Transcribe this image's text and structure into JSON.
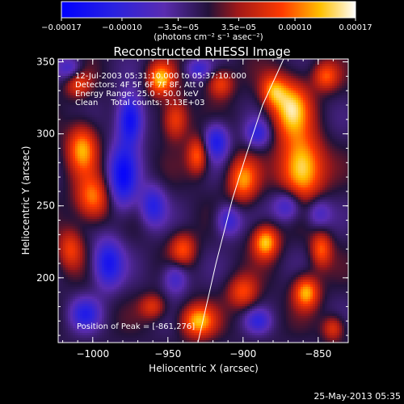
{
  "chart_data": {
    "type": "heatmap",
    "title": "Reconstructed RHESSI Image",
    "xlabel": "Heliocentric X (arcsec)",
    "ylabel": "Heliocentric Y (arcsec)",
    "xlim": [
      -1023,
      -830
    ],
    "ylim": [
      155,
      352
    ],
    "x_ticks": [
      -1000,
      -950,
      -900,
      -850
    ],
    "x_tick_labels": [
      "−1000",
      "−950",
      "−900",
      "−850"
    ],
    "y_ticks": [
      200,
      250,
      300,
      350
    ],
    "y_tick_labels": [
      "200",
      "250",
      "300",
      "350"
    ],
    "colorbar": {
      "range": [
        -0.00017,
        0.00017
      ],
      "tick_values": [
        -0.00017,
        -0.0001,
        -3.5e-05,
        3.5e-05,
        0.0001,
        0.00017
      ],
      "tick_labels": [
        "−0.00017",
        "−0.00010",
        "−3.5e−05",
        "3.5e−05",
        "0.00010",
        "0.00017"
      ],
      "units": "(photons cm⁻² s⁻¹ asec⁻²)"
    },
    "annotations": [
      "12-Jul-2003 05:31:10.000 to 05:37:10.000",
      "Detectors: 4F 5F 6F 7F 8F, Att 0",
      "Energy Range: 25.0 - 50.0 keV",
      "Clean     Total counts: 3.13E+03"
    ],
    "peak_label": "Position of Peak = [-861,276]",
    "peak": [
      -861,
      276
    ],
    "limb_curve": [
      [
        -930,
        155
      ],
      [
        -918,
        210
      ],
      [
        -907,
        255
      ],
      [
        -898,
        285
      ],
      [
        -887,
        320
      ],
      [
        -876,
        345
      ],
      [
        -873,
        352
      ]
    ],
    "blobs": [
      {
        "x": -861,
        "y": 276,
        "v": 1.0,
        "sx": 10,
        "sy": 16
      },
      {
        "x": -868,
        "y": 318,
        "v": 0.85,
        "sx": 9,
        "sy": 14
      },
      {
        "x": -900,
        "y": 268,
        "v": 0.7,
        "sx": 7,
        "sy": 11
      },
      {
        "x": -1007,
        "y": 290,
        "v": 0.75,
        "sx": 7,
        "sy": 12
      },
      {
        "x": -1000,
        "y": 255,
        "v": 0.7,
        "sx": 8,
        "sy": 11
      },
      {
        "x": -955,
        "y": 338,
        "v": 0.8,
        "sx": 6,
        "sy": 8
      },
      {
        "x": -945,
        "y": 310,
        "v": 0.6,
        "sx": 6,
        "sy": 10
      },
      {
        "x": -930,
        "y": 285,
        "v": 0.65,
        "sx": 5,
        "sy": 9
      },
      {
        "x": -885,
        "y": 225,
        "v": 0.85,
        "sx": 6,
        "sy": 8
      },
      {
        "x": -858,
        "y": 190,
        "v": 0.8,
        "sx": 6,
        "sy": 8
      },
      {
        "x": -848,
        "y": 220,
        "v": 0.6,
        "sx": 5,
        "sy": 9
      },
      {
        "x": -930,
        "y": 170,
        "v": 0.8,
        "sx": 8,
        "sy": 8
      },
      {
        "x": -900,
        "y": 190,
        "v": 0.55,
        "sx": 7,
        "sy": 8
      },
      {
        "x": -940,
        "y": 220,
        "v": 0.55,
        "sx": 6,
        "sy": 8
      },
      {
        "x": -1015,
        "y": 220,
        "v": 0.5,
        "sx": 6,
        "sy": 10
      },
      {
        "x": -960,
        "y": 180,
        "v": 0.45,
        "sx": 6,
        "sy": 6
      },
      {
        "x": -880,
        "y": 330,
        "v": 0.6,
        "sx": 6,
        "sy": 8
      },
      {
        "x": -845,
        "y": 340,
        "v": 0.55,
        "sx": 6,
        "sy": 7
      },
      {
        "x": -840,
        "y": 165,
        "v": 0.5,
        "sx": 5,
        "sy": 6
      },
      {
        "x": -1010,
        "y": 335,
        "v": 0.5,
        "sx": 6,
        "sy": 7
      },
      {
        "x": -915,
        "y": 335,
        "v": 0.55,
        "sx": 6,
        "sy": 7
      },
      {
        "x": -980,
        "y": 270,
        "v": -0.8,
        "sx": 7,
        "sy": 16
      },
      {
        "x": -975,
        "y": 310,
        "v": -0.9,
        "sx": 6,
        "sy": 12
      },
      {
        "x": -990,
        "y": 210,
        "v": -0.75,
        "sx": 7,
        "sy": 12
      },
      {
        "x": -960,
        "y": 250,
        "v": -0.6,
        "sx": 6,
        "sy": 10
      },
      {
        "x": -918,
        "y": 295,
        "v": -0.7,
        "sx": 6,
        "sy": 9
      },
      {
        "x": -910,
        "y": 240,
        "v": -0.55,
        "sx": 6,
        "sy": 8
      },
      {
        "x": -870,
        "y": 250,
        "v": -0.6,
        "sx": 7,
        "sy": 8
      },
      {
        "x": -850,
        "y": 245,
        "v": -0.45,
        "sx": 6,
        "sy": 8
      },
      {
        "x": -1005,
        "y": 175,
        "v": -0.55,
        "sx": 7,
        "sy": 8
      },
      {
        "x": -945,
        "y": 200,
        "v": -0.5,
        "sx": 6,
        "sy": 8
      },
      {
        "x": -890,
        "y": 170,
        "v": -0.45,
        "sx": 6,
        "sy": 6
      },
      {
        "x": -1015,
        "y": 345,
        "v": -0.5,
        "sx": 6,
        "sy": 6
      },
      {
        "x": -930,
        "y": 345,
        "v": -0.45,
        "sx": 6,
        "sy": 5
      },
      {
        "x": -890,
        "y": 300,
        "v": -0.5,
        "sx": 6,
        "sy": 7
      }
    ]
  },
  "footer": {
    "timestamp": "25-May-2013 05:35"
  }
}
